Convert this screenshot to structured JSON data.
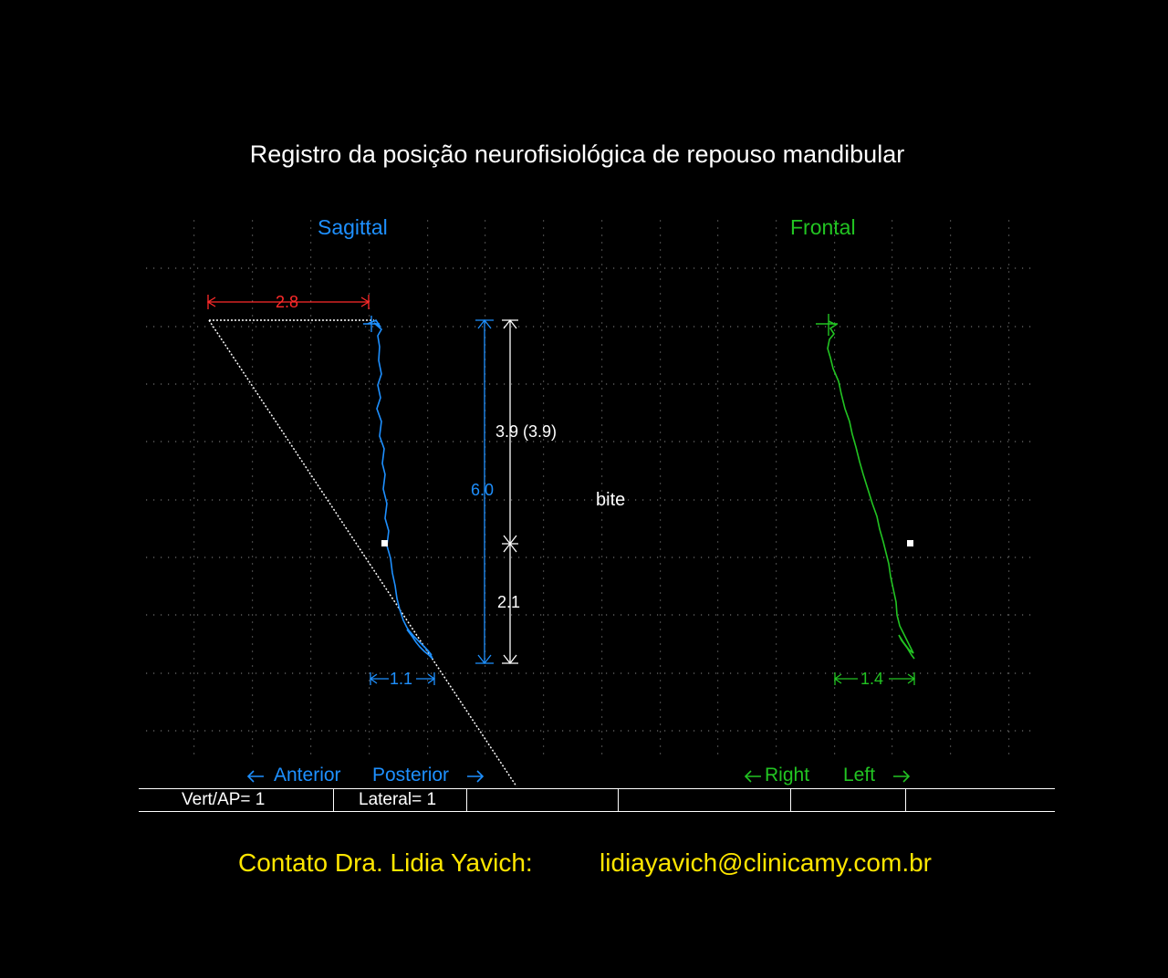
{
  "title": "Registro da posição neurofisiológica de repouso mandibular",
  "sagittal": {
    "title": "Sagittal",
    "width_label": "2.8",
    "total_label": "6.0",
    "upper_label": "3.9 (3.9)",
    "lower_label": "2.1",
    "spread_label": "1.1",
    "dir_left": "Anterior",
    "dir_right": "Posterior",
    "color": "#1e90ff"
  },
  "frontal": {
    "title": "Frontal",
    "spread_label": "1.4",
    "dir_left": "Right",
    "dir_right": "Left",
    "color": "#22c422"
  },
  "bite_label": "bite",
  "status_bar": {
    "cells": [
      "Vert/AP= 1",
      "Lateral= 1",
      "",
      "",
      "",
      ""
    ]
  },
  "contact": {
    "label": "Contato  Dra. Lidia Yavich:",
    "email": "lidiayavich@clinicamy.com.br"
  },
  "colors": {
    "background": "#000000",
    "width_marker": "#ff2a2a",
    "contact_text": "#ffe600"
  }
}
